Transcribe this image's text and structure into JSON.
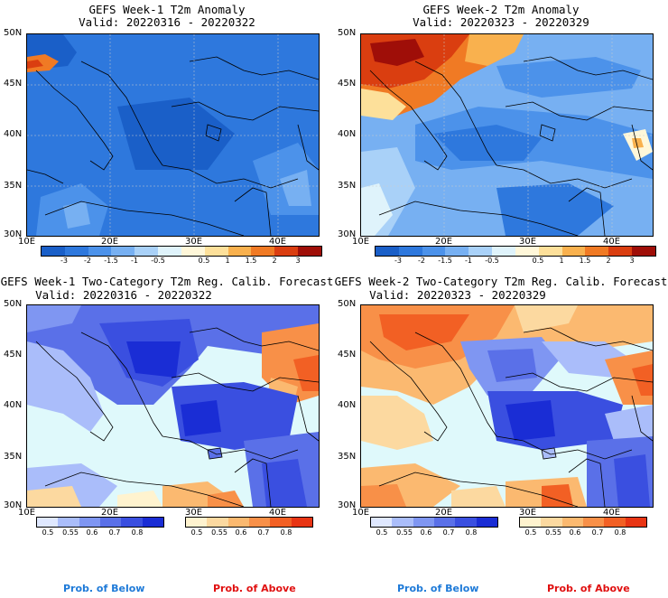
{
  "panels": [
    {
      "title": "GEFS Week-1 T2m Anomaly",
      "valid": "Valid: 20220316 - 20220322"
    },
    {
      "title": "GEFS Week-2 T2m Anomaly",
      "valid": "Valid: 20220323 - 20220329"
    },
    {
      "title": "GEFS Week-1 Two-Category T2m Reg. Calib. Forecast",
      "valid": "Valid: 20220316 - 20220322"
    },
    {
      "title": "GEFS Week-2 Two-Category T2m Reg. Calib. Forecast",
      "valid": "Valid: 20220323 - 20220329"
    }
  ],
  "lat_labels": [
    "50N",
    "45N",
    "40N",
    "35N",
    "30N"
  ],
  "lon_labels": [
    "10E",
    "20E",
    "30E",
    "40E"
  ],
  "anomaly_colorbar": {
    "colors": [
      "#1a5fc8",
      "#2e78dd",
      "#4c92ea",
      "#77b0f2",
      "#a9d1f8",
      "#dff3fb",
      "#fff7d9",
      "#fde09a",
      "#f9b14e",
      "#f07a24",
      "#da3e10",
      "#9f0e08"
    ],
    "labels": [
      "-3",
      "-2",
      "-1.5",
      "-1",
      "-0.5",
      "0.5",
      "1",
      "1.5",
      "2",
      "3"
    ]
  },
  "prob_colorbar_below": {
    "colors": [
      "#dfe8ff",
      "#aabdfa",
      "#7f96f2",
      "#5a70e8",
      "#3a4fe0",
      "#1a2dd5"
    ],
    "labels": [
      "0.5",
      "0.55",
      "0.6",
      "0.7",
      "0.8"
    ]
  },
  "prob_colorbar_above": {
    "colors": [
      "#fff3cf",
      "#fcd9a0",
      "#fbb970",
      "#f89048",
      "#f26024",
      "#e83514"
    ],
    "labels": [
      "0.5",
      "0.55",
      "0.6",
      "0.7",
      "0.8"
    ]
  },
  "legend": {
    "below": "Prob. of Below",
    "above": "Prob. of Above",
    "below_color": "#1e7ad8",
    "above_color": "#e01010"
  },
  "colors": {
    "sea_light": "#dff9fb",
    "land_blue": "#2e78dd"
  }
}
